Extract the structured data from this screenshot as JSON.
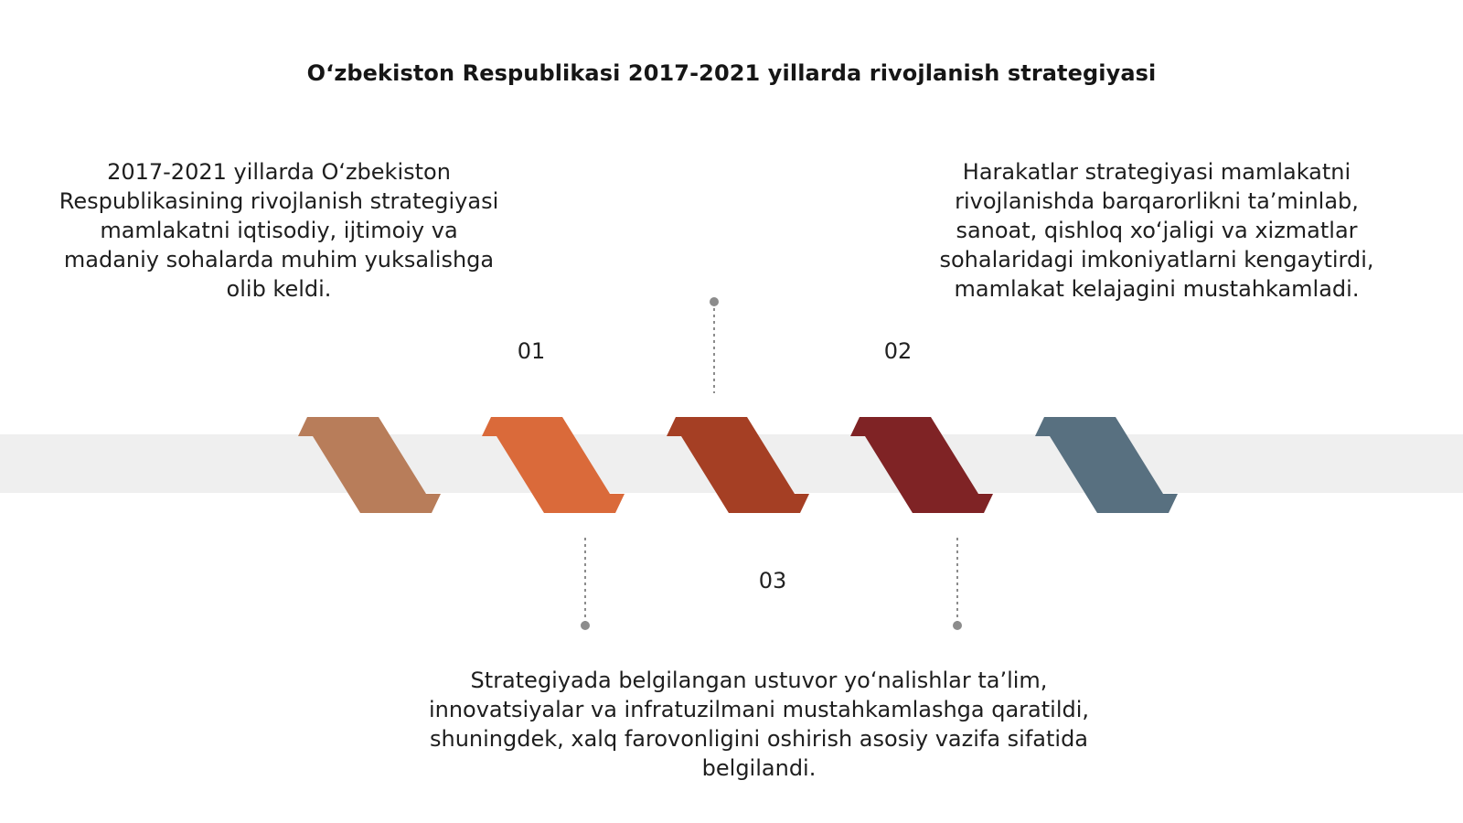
{
  "title": "Oʻzbekiston Respublikasi 2017-2021 yillarda rivojlanish strategiyasi",
  "steps": [
    {
      "number": "01",
      "text": "2017-2021 yillarda Oʻzbekiston Respublikasining rivojlanish strategiyasi mamlakatni iqtisodiy, ijtimoiy va madaniy sohalarda muhim yuksalishga olib keldi."
    },
    {
      "number": "02",
      "text": "Harakatlar strategiyasi mamlakatni rivojlanishda barqarorlikni taʼminlab, sanoat, qishloq xoʻjaligi va xizmatlar sohalaridagi imkoniyatlarni kengaytirdi, mamlakat kelajagini mustahkamladi."
    },
    {
      "number": "03",
      "text": "Strategiyada belgilangan ustuvor yoʻnalishlar taʼlim, innovatsiyalar va infratuzilmani mustahkamlashga qaratildi, shuningdek, xalq farovonligini oshirish asosiy vazifa sifatida belgilandi."
    }
  ],
  "colors": {
    "band": "#efefef",
    "connector": "#8c8c8c",
    "chevron_1": "#b87d5a",
    "chevron_2": "#da6a3a",
    "chevron_3": "#a53f24",
    "chevron_4": "#7f2325",
    "chevron_5": "#587080"
  }
}
